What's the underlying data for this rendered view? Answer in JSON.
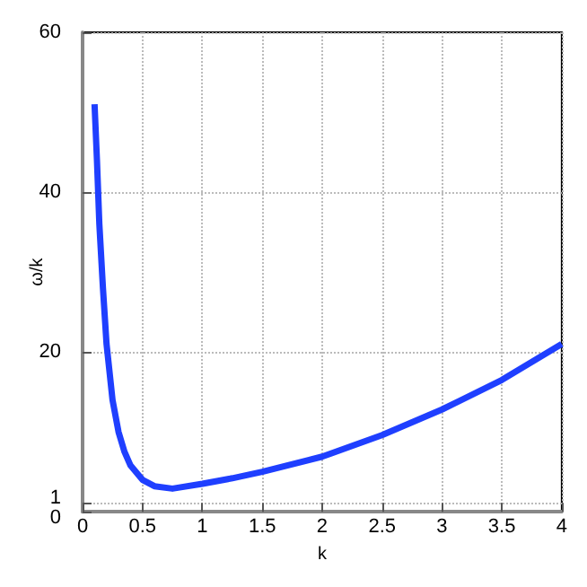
{
  "chart_data": {
    "type": "line",
    "xlabel": "k",
    "ylabel": "ω/k",
    "series": [
      {
        "color": "#1f3fff",
        "x": [
          0.1,
          0.12,
          0.14,
          0.17,
          0.2,
          0.25,
          0.3,
          0.35,
          0.4,
          0.5,
          0.6,
          0.75,
          1,
          1.25,
          1.5,
          2,
          2.5,
          3,
          3.5,
          4
        ],
        "values": [
          51,
          44,
          36,
          28,
          21,
          14,
          10,
          7.5,
          5.8,
          4,
          3.2,
          2.9,
          3.5,
          4.2,
          5,
          6.9,
          9.6,
          12.8,
          16.5,
          21
        ]
      }
    ],
    "xlim": [
      0,
      4
    ],
    "xticks": [
      0,
      0.5,
      1,
      1.5,
      2,
      2.5,
      3,
      3.5,
      4
    ],
    "ylim": [
      0,
      60
    ],
    "yticks": [
      0,
      1,
      20,
      40,
      60
    ],
    "grid": true,
    "line_style": "solid",
    "marker": "none"
  }
}
